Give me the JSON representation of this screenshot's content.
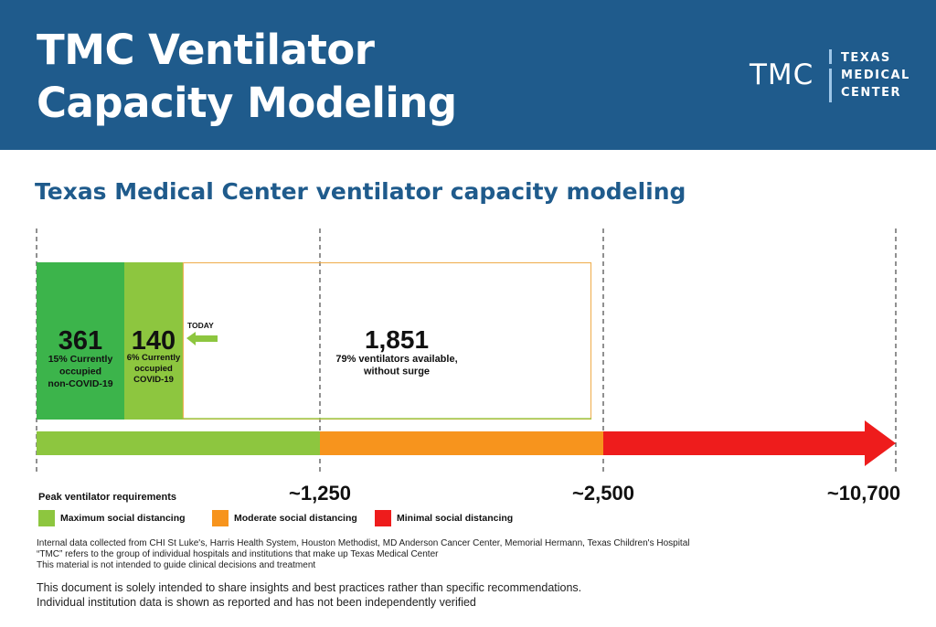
{
  "header": {
    "title_line1": "TMC Ventilator",
    "title_line2": "Capacity Modeling",
    "logo_mark": "TMC",
    "logo_line1": "TEXAS",
    "logo_line2": "MEDICAL",
    "logo_line3": "CENTER"
  },
  "chart_data": {
    "type": "bar",
    "title": "Texas Medical Center ventilator capacity modeling",
    "capacity_segments": [
      {
        "name": "occupied-non-covid",
        "value": 361,
        "label": "361",
        "desc": [
          "15% Currently",
          "occupied",
          "non-COVID-19"
        ],
        "color": "#3cb44b"
      },
      {
        "name": "occupied-covid",
        "value": 140,
        "label": "140",
        "desc": [
          "6% Currently",
          "occupied",
          "COVID-19"
        ],
        "color": "#8dc63f"
      },
      {
        "name": "available",
        "value": 1851,
        "label": "1,851",
        "desc": [
          "79% ventilators available,",
          "without surge"
        ],
        "color": "#f0b35a"
      }
    ],
    "today_label": "TODAY",
    "xlim": [
      0,
      2500
    ],
    "thresholds": [
      {
        "value": 1250,
        "label": "~1,250"
      },
      {
        "value": 2500,
        "label": "~2,500"
      },
      {
        "value": 10700,
        "label": "~10,700"
      }
    ],
    "scenario_bands": [
      {
        "name": "maximum",
        "from": 0,
        "to": 1250,
        "color": "#8dc63f"
      },
      {
        "name": "moderate",
        "from": 1250,
        "to": 2500,
        "color": "#f7941d"
      },
      {
        "name": "minimal",
        "from": 2500,
        "to": 10700,
        "color": "#ee1c1c"
      }
    ]
  },
  "legend": {
    "title": "Peak ventilator requirements",
    "items": [
      {
        "label": "Maximum social distancing",
        "color": "#8dc63f"
      },
      {
        "label": "Moderate social distancing",
        "color": "#f7941d"
      },
      {
        "label": "Minimal social distancing",
        "color": "#ee1c1c"
      }
    ]
  },
  "notes": {
    "line1": "Internal data collected from CHI St Luke's, Harris Health System, Houston Methodist, MD Anderson Cancer Center, Memorial Hermann, Texas Children's Hospital",
    "line2": "“TMC” refers to the group of individual hospitals and institutions that make up Texas Medical Center",
    "line3": "This material is not intended to guide clinical decisions and treatment"
  },
  "disclaimer": {
    "line1": "This document is solely intended to share insights and best practices rather than specific recommendations.",
    "line2": "Individual institution data is shown as reported and has not been independently verified"
  }
}
